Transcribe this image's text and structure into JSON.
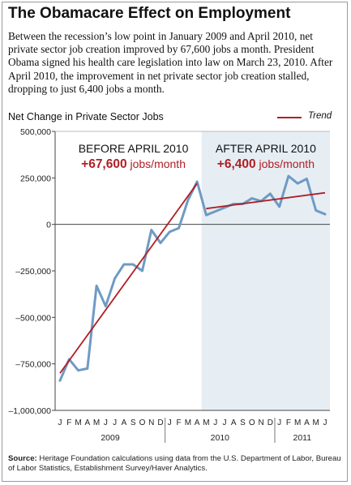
{
  "title": "The Obamacare Effect on Employment",
  "subtitle": "Between the recession’s low point in January 2009 and April 2010, net private sector job creation improved by 67,600 jobs a month. President Obama signed his health care legislation into law on March 23, 2010. After April 2010, the improvement in net private sector job creation stalled, dropping to just 6,400 jobs a month.",
  "source": {
    "label": "Source:",
    "text": " Heritage Foundation calculations using data from the U.S. Department of Labor, Bureau of Labor Statistics, Establishment Survey/Haver Analytics."
  },
  "colors": {
    "series": "#6e9bc4",
    "trend": "#b01e24",
    "shade": "#e6eef4"
  },
  "chart_data": {
    "type": "line",
    "title": "Net Change in Private Sector Jobs",
    "legend": {
      "label": "Trend",
      "placement": "top-right"
    },
    "ylim": [
      -1000000,
      500000
    ],
    "y_ticks": [
      500000,
      250000,
      0,
      -250000,
      -500000,
      -750000,
      -1000000
    ],
    "y_tick_labels": [
      "500,000",
      "250,000",
      "0",
      "–250,000",
      "–500,000",
      "–750,000",
      "–1,000,000"
    ],
    "x": [
      "2009-01",
      "2009-02",
      "2009-03",
      "2009-04",
      "2009-05",
      "2009-06",
      "2009-07",
      "2009-08",
      "2009-09",
      "2009-10",
      "2009-11",
      "2009-12",
      "2010-01",
      "2010-02",
      "2010-03",
      "2010-04",
      "2010-05",
      "2010-06",
      "2010-07",
      "2010-08",
      "2010-09",
      "2010-10",
      "2010-11",
      "2010-12",
      "2011-01",
      "2011-02",
      "2011-03",
      "2011-04",
      "2011-05",
      "2011-06"
    ],
    "x_tick_labels": [
      "J",
      "F",
      "M",
      "A",
      "M",
      "J",
      "J",
      "A",
      "S",
      "O",
      "N",
      "D",
      "J",
      "F",
      "M",
      "A",
      "M",
      "J",
      "J",
      "A",
      "S",
      "O",
      "N",
      "D",
      "J",
      "F",
      "M",
      "A",
      "M",
      "J"
    ],
    "years": [
      {
        "label": "2009",
        "start": "2009-01",
        "end": "2009-12"
      },
      {
        "label": "2010",
        "start": "2010-01",
        "end": "2010-12"
      },
      {
        "label": "2011",
        "start": "2011-01",
        "end": "2011-06"
      }
    ],
    "series": [
      {
        "name": "Net Change in Private Sector Jobs",
        "values": [
          -840000,
          -725000,
          -785000,
          -775000,
          -330000,
          -440000,
          -290000,
          -215000,
          -215000,
          -250000,
          -30000,
          -100000,
          -40000,
          -20000,
          130000,
          230000,
          50000,
          70000,
          90000,
          110000,
          110000,
          140000,
          125000,
          165000,
          95000,
          260000,
          220000,
          245000,
          75000,
          55000
        ]
      }
    ],
    "trends": [
      {
        "start_x": "2009-01",
        "start_y": -800000,
        "end_x": "2010-04",
        "end_y": 220000
      },
      {
        "start_x": "2010-05",
        "start_y": 85000,
        "end_x": "2011-06",
        "end_y": 170000
      }
    ],
    "annotations": {
      "before": {
        "label": "BEFORE APRIL 2010",
        "rate": "+67,600",
        "unit": " jobs/month"
      },
      "after": {
        "label": "AFTER APRIL 2010",
        "rate": "+6,400",
        "unit": " jobs/month"
      }
    },
    "shaded_region": {
      "start": "2010-05",
      "end": "2011-06"
    }
  }
}
